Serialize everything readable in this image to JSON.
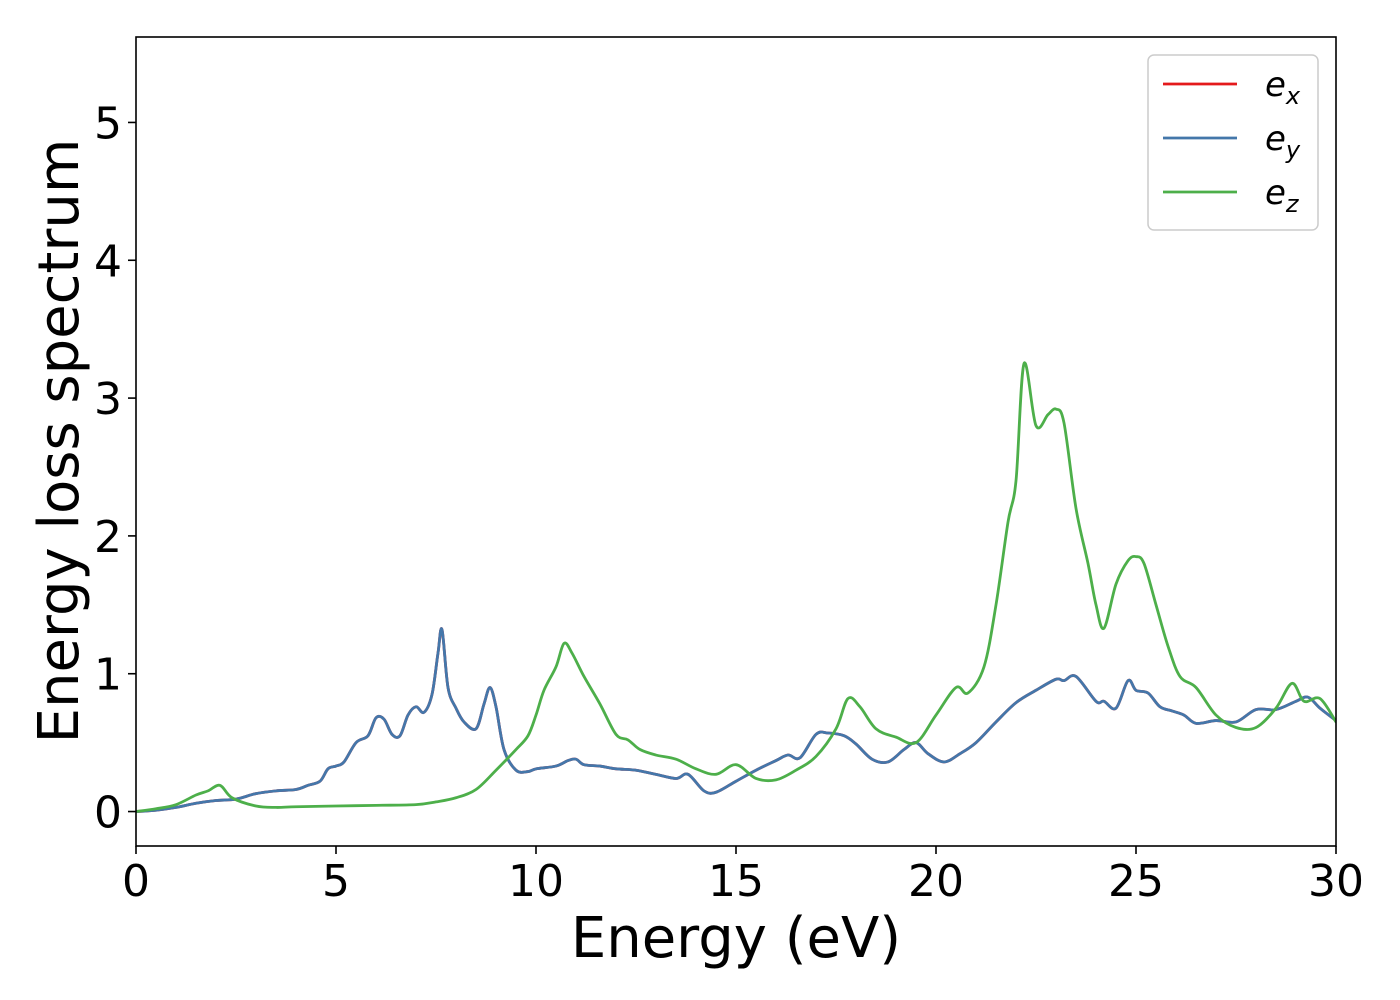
{
  "chart_data": {
    "type": "line",
    "title": "",
    "xlabel": "Energy (eV)",
    "ylabel": "Energy loss spectrum",
    "xlim": [
      0,
      30
    ],
    "ylim": [
      -0.25,
      5.62
    ],
    "xticks": [
      0,
      5,
      10,
      15,
      20,
      25,
      30
    ],
    "yticks": [
      0,
      1,
      2,
      3,
      4,
      5
    ],
    "grid": false,
    "legend_position": "top-right",
    "series": [
      {
        "name": "e",
        "subscript": "x",
        "color": "#e41a1c",
        "x": [
          0,
          0.5,
          1,
          1.5,
          2,
          2.5,
          3,
          3.5,
          4,
          4.3,
          4.6,
          4.8,
          5,
          5.2,
          5.5,
          5.8,
          6,
          6.2,
          6.4,
          6.6,
          6.8,
          7,
          7.2,
          7.4,
          7.55,
          7.65,
          7.8,
          8,
          8.2,
          8.5,
          8.7,
          8.85,
          9,
          9.2,
          9.5,
          9.8,
          10,
          10.5,
          10.8,
          11,
          11.2,
          11.6,
          12,
          12.5,
          13,
          13.5,
          13.8,
          14.2,
          14.5,
          15,
          15.5,
          16,
          16.3,
          16.6,
          17,
          17.3,
          17.7,
          18,
          18.4,
          18.8,
          19.2,
          19.5,
          19.8,
          20.2,
          20.6,
          21,
          21.5,
          22,
          22.5,
          23,
          23.2,
          23.5,
          24,
          24.2,
          24.5,
          24.8,
          25,
          25.3,
          25.6,
          25.9,
          26.2,
          26.5,
          27,
          27.5,
          28,
          28.5,
          29,
          29.3,
          29.6,
          30
        ],
        "y": [
          0,
          0.01,
          0.03,
          0.06,
          0.08,
          0.09,
          0.13,
          0.15,
          0.16,
          0.19,
          0.22,
          0.31,
          0.33,
          0.36,
          0.5,
          0.55,
          0.68,
          0.67,
          0.56,
          0.55,
          0.7,
          0.76,
          0.72,
          0.85,
          1.15,
          1.32,
          0.9,
          0.75,
          0.65,
          0.6,
          0.78,
          0.9,
          0.76,
          0.45,
          0.3,
          0.29,
          0.31,
          0.33,
          0.37,
          0.38,
          0.34,
          0.33,
          0.31,
          0.3,
          0.27,
          0.24,
          0.27,
          0.15,
          0.14,
          0.22,
          0.3,
          0.37,
          0.41,
          0.39,
          0.56,
          0.57,
          0.55,
          0.49,
          0.38,
          0.36,
          0.45,
          0.5,
          0.42,
          0.36,
          0.42,
          0.5,
          0.65,
          0.79,
          0.88,
          0.96,
          0.95,
          0.98,
          0.8,
          0.8,
          0.75,
          0.95,
          0.88,
          0.86,
          0.76,
          0.73,
          0.7,
          0.64,
          0.66,
          0.65,
          0.74,
          0.74,
          0.8,
          0.83,
          0.75,
          0.66
        ]
      },
      {
        "name": "e",
        "subscript": "y",
        "color": "#4477aa",
        "x": [
          0,
          0.5,
          1,
          1.5,
          2,
          2.5,
          3,
          3.5,
          4,
          4.3,
          4.6,
          4.8,
          5,
          5.2,
          5.5,
          5.8,
          6,
          6.2,
          6.4,
          6.6,
          6.8,
          7,
          7.2,
          7.4,
          7.55,
          7.65,
          7.8,
          8,
          8.2,
          8.5,
          8.7,
          8.85,
          9,
          9.2,
          9.5,
          9.8,
          10,
          10.5,
          10.8,
          11,
          11.2,
          11.6,
          12,
          12.5,
          13,
          13.5,
          13.8,
          14.2,
          14.5,
          15,
          15.5,
          16,
          16.3,
          16.6,
          17,
          17.3,
          17.7,
          18,
          18.4,
          18.8,
          19.2,
          19.5,
          19.8,
          20.2,
          20.6,
          21,
          21.5,
          22,
          22.5,
          23,
          23.2,
          23.5,
          24,
          24.2,
          24.5,
          24.8,
          25,
          25.3,
          25.6,
          25.9,
          26.2,
          26.5,
          27,
          27.5,
          28,
          28.5,
          29,
          29.3,
          29.6,
          30
        ],
        "y": [
          0,
          0.01,
          0.03,
          0.06,
          0.08,
          0.09,
          0.13,
          0.15,
          0.16,
          0.19,
          0.22,
          0.31,
          0.33,
          0.36,
          0.5,
          0.55,
          0.68,
          0.67,
          0.56,
          0.55,
          0.7,
          0.76,
          0.72,
          0.85,
          1.15,
          1.32,
          0.9,
          0.75,
          0.65,
          0.6,
          0.78,
          0.9,
          0.76,
          0.45,
          0.3,
          0.29,
          0.31,
          0.33,
          0.37,
          0.38,
          0.34,
          0.33,
          0.31,
          0.3,
          0.27,
          0.24,
          0.27,
          0.15,
          0.14,
          0.22,
          0.3,
          0.37,
          0.41,
          0.39,
          0.56,
          0.57,
          0.55,
          0.49,
          0.38,
          0.36,
          0.45,
          0.5,
          0.42,
          0.36,
          0.42,
          0.5,
          0.65,
          0.79,
          0.88,
          0.96,
          0.95,
          0.98,
          0.8,
          0.8,
          0.75,
          0.95,
          0.88,
          0.86,
          0.76,
          0.73,
          0.7,
          0.64,
          0.66,
          0.65,
          0.74,
          0.74,
          0.8,
          0.83,
          0.75,
          0.66
        ]
      },
      {
        "name": "e",
        "subscript": "z",
        "color": "#4daf4a",
        "x": [
          0,
          0.5,
          1,
          1.5,
          1.8,
          2.1,
          2.4,
          3,
          3.5,
          4,
          5,
          6,
          7,
          7.5,
          8,
          8.5,
          9,
          9.5,
          9.8,
          10,
          10.2,
          10.5,
          10.7,
          10.9,
          11.2,
          11.6,
          12,
          12.3,
          12.6,
          13,
          13.5,
          14,
          14.5,
          15,
          15.5,
          16,
          16.5,
          17,
          17.5,
          17.8,
          18.1,
          18.5,
          19,
          19.5,
          20,
          20.5,
          20.8,
          21.2,
          21.5,
          21.8,
          22,
          22.2,
          22.5,
          22.8,
          23,
          23.2,
          23.5,
          23.8,
          24,
          24.2,
          24.5,
          24.8,
          25,
          25.2,
          25.5,
          25.8,
          26.1,
          26.5,
          27,
          27.5,
          28,
          28.5,
          28.9,
          29.2,
          29.6,
          30
        ],
        "y": [
          0,
          0.02,
          0.05,
          0.12,
          0.15,
          0.19,
          0.1,
          0.04,
          0.03,
          0.035,
          0.04,
          0.045,
          0.05,
          0.07,
          0.1,
          0.16,
          0.3,
          0.45,
          0.55,
          0.7,
          0.88,
          1.05,
          1.22,
          1.15,
          0.98,
          0.78,
          0.56,
          0.52,
          0.45,
          0.41,
          0.38,
          0.31,
          0.27,
          0.34,
          0.24,
          0.23,
          0.3,
          0.4,
          0.6,
          0.82,
          0.76,
          0.6,
          0.54,
          0.5,
          0.7,
          0.9,
          0.86,
          1.05,
          1.5,
          2.1,
          2.4,
          3.25,
          2.8,
          2.88,
          2.92,
          2.82,
          2.2,
          1.8,
          1.5,
          1.33,
          1.65,
          1.82,
          1.85,
          1.8,
          1.5,
          1.2,
          0.98,
          0.9,
          0.7,
          0.61,
          0.61,
          0.75,
          0.93,
          0.8,
          0.82,
          0.65
        ]
      }
    ]
  }
}
